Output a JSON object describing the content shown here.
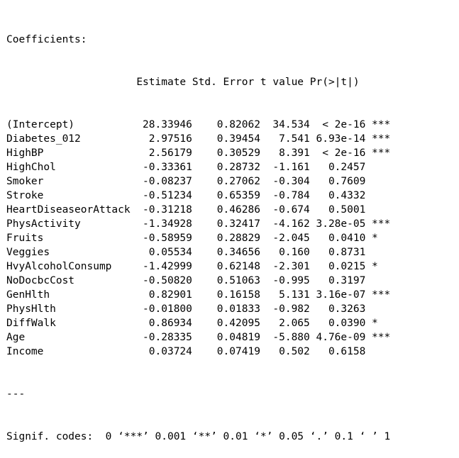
{
  "output": {
    "heading": "Coefficients:",
    "column_header": "                     Estimate Std. Error t value Pr(>|t|)    ",
    "rows": [
      {
        "term": "(Intercept)",
        "estimate": "28.33946",
        "std_error": "0.82062",
        "t_value": "34.534",
        "p_value": "< 2e-16",
        "signif": "***"
      },
      {
        "term": "Diabetes_012",
        "estimate": "2.97516",
        "std_error": "0.39454",
        "t_value": "7.541",
        "p_value": "6.93e-14",
        "signif": "***"
      },
      {
        "term": "HighBP",
        "estimate": "2.56179",
        "std_error": "0.30529",
        "t_value": "8.391",
        "p_value": "< 2e-16",
        "signif": "***"
      },
      {
        "term": "HighChol",
        "estimate": "-0.33361",
        "std_error": "0.28732",
        "t_value": "-1.161",
        "p_value": "0.2457",
        "signif": ""
      },
      {
        "term": "Smoker",
        "estimate": "-0.08237",
        "std_error": "0.27062",
        "t_value": "-0.304",
        "p_value": "0.7609",
        "signif": ""
      },
      {
        "term": "Stroke",
        "estimate": "-0.51234",
        "std_error": "0.65359",
        "t_value": "-0.784",
        "p_value": "0.4332",
        "signif": ""
      },
      {
        "term": "HeartDiseaseorAttack",
        "estimate": "-0.31218",
        "std_error": "0.46286",
        "t_value": "-0.674",
        "p_value": "0.5001",
        "signif": ""
      },
      {
        "term": "PhysActivity",
        "estimate": "-1.34928",
        "std_error": "0.32417",
        "t_value": "-4.162",
        "p_value": "3.28e-05",
        "signif": "***"
      },
      {
        "term": "Fruits",
        "estimate": "-0.58959",
        "std_error": "0.28829",
        "t_value": "-2.045",
        "p_value": "0.0410",
        "signif": "*"
      },
      {
        "term": "Veggies",
        "estimate": "0.05534",
        "std_error": "0.34656",
        "t_value": "0.160",
        "p_value": "0.8731",
        "signif": ""
      },
      {
        "term": "HvyAlcoholConsump",
        "estimate": "-1.42999",
        "std_error": "0.62148",
        "t_value": "-2.301",
        "p_value": "0.0215",
        "signif": "*"
      },
      {
        "term": "NoDocbcCost",
        "estimate": "-0.50820",
        "std_error": "0.51063",
        "t_value": "-0.995",
        "p_value": "0.3197",
        "signif": ""
      },
      {
        "term": "GenHlth",
        "estimate": "0.82901",
        "std_error": "0.16158",
        "t_value": "5.131",
        "p_value": "3.16e-07",
        "signif": "***"
      },
      {
        "term": "PhysHlth",
        "estimate": "-0.01800",
        "std_error": "0.01833",
        "t_value": "-0.982",
        "p_value": "0.3263",
        "signif": ""
      },
      {
        "term": "DiffWalk",
        "estimate": "0.86934",
        "std_error": "0.42095",
        "t_value": "2.065",
        "p_value": "0.0390",
        "signif": "*"
      },
      {
        "term": "Age",
        "estimate": "-0.28335",
        "std_error": "0.04819",
        "t_value": "-5.880",
        "p_value": "4.76e-09",
        "signif": "***"
      },
      {
        "term": "Income",
        "estimate": "0.03724",
        "std_error": "0.07419",
        "t_value": "0.502",
        "p_value": "0.6158",
        "signif": ""
      }
    ],
    "separator": "---",
    "signif_codes": "Signif. codes:  0 ‘***’ 0.001 ‘**’ 0.01 ‘*’ 0.05 ‘.’ 0.1 ‘ ’ 1"
  }
}
